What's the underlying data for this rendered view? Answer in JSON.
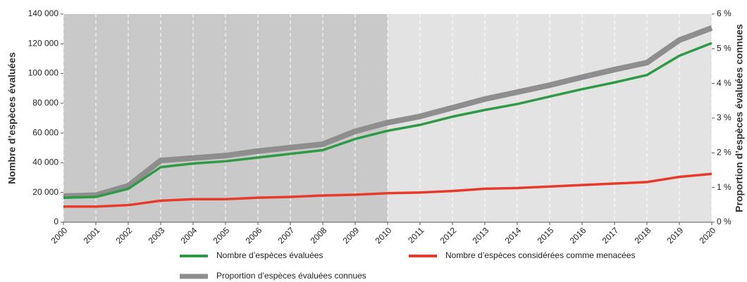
{
  "chart_data": {
    "type": "line",
    "ylabel": "Nombre d’espèces évaluées",
    "y2label": "Proportion d’espèces évaluées connues",
    "x": [
      2000,
      2001,
      2002,
      2003,
      2004,
      2005,
      2006,
      2007,
      2008,
      2009,
      2010,
      2011,
      2012,
      2013,
      2014,
      2015,
      2016,
      2017,
      2018,
      2019,
      2020
    ],
    "xlim": [
      2000,
      2020
    ],
    "xticks": [
      2000,
      2001,
      2002,
      2003,
      2004,
      2005,
      2006,
      2007,
      2008,
      2009,
      2010,
      2011,
      2012,
      2013,
      2014,
      2015,
      2016,
      2017,
      2018,
      2019,
      2020
    ],
    "ylim": [
      0,
      140000
    ],
    "yticks": [
      {
        "value": 0,
        "label": "0"
      },
      {
        "value": 20000,
        "label": "20 000"
      },
      {
        "value": 40000,
        "label": "40 000"
      },
      {
        "value": 60000,
        "label": "60 000"
      },
      {
        "value": 80000,
        "label": "80 000"
      },
      {
        "value": 100000,
        "label": "100 000"
      },
      {
        "value": 120000,
        "label": "120 000"
      },
      {
        "value": 140000,
        "label": "140 000"
      }
    ],
    "y2lim": [
      0,
      6
    ],
    "y2ticks": [
      {
        "value": 0,
        "label": "0 %"
      },
      {
        "value": 1,
        "label": "1 %"
      },
      {
        "value": 2,
        "label": "2 %"
      },
      {
        "value": 3,
        "label": "3 %"
      },
      {
        "value": 4,
        "label": "4 %"
      },
      {
        "value": 5,
        "label": "5 %"
      },
      {
        "value": 6,
        "label": "6 %"
      }
    ],
    "shaded_range": [
      2000,
      2010
    ],
    "grid": true,
    "series": [
      {
        "name": "Proportion d’espèces évaluées connues",
        "color": "#8e8e8e",
        "axis": "y2",
        "values": [
          0.75,
          0.78,
          1.05,
          1.78,
          1.85,
          1.92,
          2.05,
          2.15,
          2.25,
          2.62,
          2.87,
          3.05,
          3.3,
          3.55,
          3.75,
          3.95,
          4.18,
          4.4,
          4.6,
          5.25,
          5.6
        ]
      },
      {
        "name": "Nombre d’espèces évaluées",
        "color": "#2e9a45",
        "values": [
          16500,
          17000,
          22500,
          37000,
          39500,
          41000,
          43500,
          46000,
          48500,
          56000,
          61500,
          65500,
          71000,
          75500,
          79500,
          84500,
          89500,
          94000,
          99000,
          112000,
          120500
        ]
      },
      {
        "name": "Nombre d’espèces considérées comme menacées",
        "color": "#e83a2a",
        "values": [
          10500,
          10500,
          11500,
          14500,
          15500,
          15500,
          16500,
          17000,
          18000,
          18500,
          19500,
          20000,
          21000,
          22500,
          23000,
          24000,
          25000,
          26000,
          27000,
          30500,
          32500
        ]
      }
    ]
  }
}
